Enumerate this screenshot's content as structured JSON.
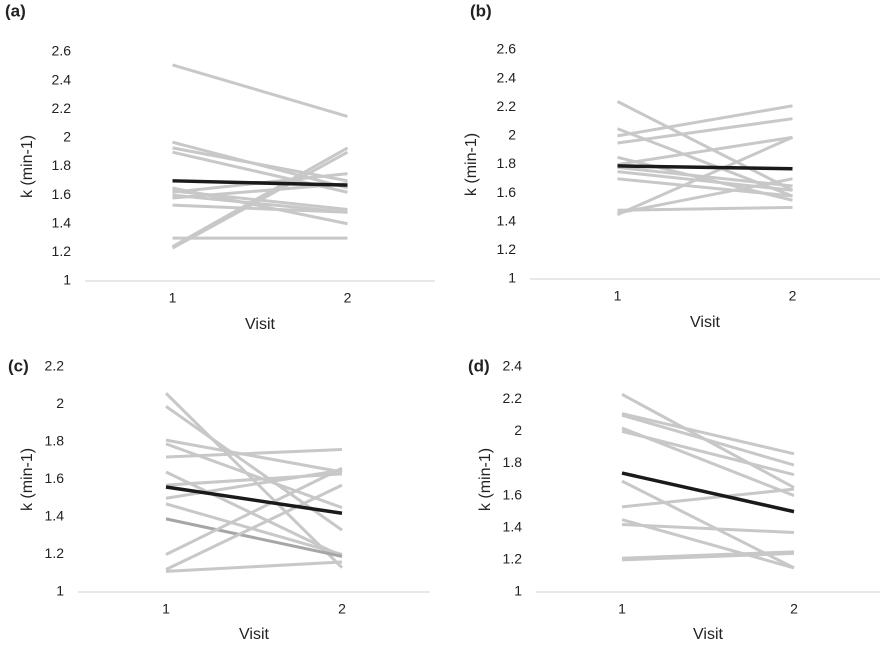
{
  "chart_data": [
    {
      "type": "line",
      "label": "(a)",
      "xlabel": "Visit",
      "ylabel": "k (min-1)",
      "categories": [
        "1",
        "2"
      ],
      "ylim": [
        1,
        2.6
      ],
      "yticks": [
        1,
        1.2,
        1.4,
        1.6,
        1.8,
        2,
        2.2,
        2.4,
        2.6
      ],
      "series": [
        {
          "color": "#c8c8c8",
          "values": [
            2.51,
            2.15
          ]
        },
        {
          "color": "#c8c8c8",
          "values": [
            1.97,
            1.65
          ]
        },
        {
          "color": "#c8c8c8",
          "values": [
            1.93,
            1.7
          ]
        },
        {
          "color": "#c8c8c8",
          "values": [
            1.9,
            1.62
          ]
        },
        {
          "color": "#c8c8c8",
          "values": [
            1.62,
            1.75
          ]
        },
        {
          "color": "#c8c8c8",
          "values": [
            1.58,
            1.68
          ]
        },
        {
          "color": "#c8c8c8",
          "values": [
            1.63,
            1.5
          ]
        },
        {
          "color": "#c8c8c8",
          "values": [
            1.53,
            1.48
          ]
        },
        {
          "color": "#c8c8c8",
          "values": [
            1.3,
            1.3
          ]
        },
        {
          "color": "#c8c8c8",
          "values": [
            1.24,
            1.93
          ]
        },
        {
          "color": "#c8c8c8",
          "values": [
            1.23,
            1.9
          ]
        },
        {
          "color": "#c8c8c8",
          "values": [
            1.65,
            1.4
          ]
        },
        {
          "color": "#c8c8c8",
          "values": [
            1.6,
            1.48
          ]
        },
        {
          "color": "#1a1a1a",
          "values": [
            1.7,
            1.67
          ]
        }
      ]
    },
    {
      "type": "line",
      "label": "(b)",
      "xlabel": "Visit",
      "ylabel": "k (min-1)",
      "categories": [
        "1",
        "2"
      ],
      "ylim": [
        1,
        2.6
      ],
      "yticks": [
        1,
        1.2,
        1.4,
        1.6,
        1.8,
        2,
        2.2,
        2.4,
        2.6
      ],
      "series": [
        {
          "color": "#c8c8c8",
          "values": [
            2.24,
            1.62
          ]
        },
        {
          "color": "#c8c8c8",
          "values": [
            2.05,
            1.58
          ]
        },
        {
          "color": "#c8c8c8",
          "values": [
            2.0,
            2.21
          ]
        },
        {
          "color": "#c8c8c8",
          "values": [
            1.95,
            2.12
          ]
        },
        {
          "color": "#c8c8c8",
          "values": [
            1.8,
            1.99
          ]
        },
        {
          "color": "#c8c8c8",
          "values": [
            1.75,
            1.62
          ]
        },
        {
          "color": "#c8c8c8",
          "values": [
            1.7,
            1.58
          ]
        },
        {
          "color": "#c8c8c8",
          "values": [
            1.48,
            1.5
          ]
        },
        {
          "color": "#c8c8c8",
          "values": [
            1.45,
            1.99
          ]
        },
        {
          "color": "#c8c8c8",
          "values": [
            1.46,
            1.7
          ]
        },
        {
          "color": "#c8c8c8",
          "values": [
            1.85,
            1.55
          ]
        },
        {
          "color": "#c8c8c8",
          "values": [
            1.78,
            1.65
          ]
        },
        {
          "color": "#1a1a1a",
          "values": [
            1.79,
            1.77
          ]
        }
      ]
    },
    {
      "type": "line",
      "label": "(c)",
      "xlabel": "Visit",
      "xlabel_color": "#a6a6a6",
      "ylabel": "k (min-1)",
      "categories": [
        "1",
        "2"
      ],
      "ylim": [
        1,
        2.2
      ],
      "yticks": [
        1,
        1.2,
        1.4,
        1.6,
        1.8,
        2,
        2.2
      ],
      "series": [
        {
          "color": "#c8c8c8",
          "values": [
            2.06,
            1.13
          ]
        },
        {
          "color": "#c8c8c8",
          "values": [
            1.99,
            1.33
          ]
        },
        {
          "color": "#c8c8c8",
          "values": [
            1.81,
            1.64
          ]
        },
        {
          "color": "#c8c8c8",
          "values": [
            1.79,
            1.45
          ]
        },
        {
          "color": "#c8c8c8",
          "values": [
            1.72,
            1.76
          ]
        },
        {
          "color": "#c8c8c8",
          "values": [
            1.64,
            1.19
          ]
        },
        {
          "color": "#c8c8c8",
          "values": [
            1.57,
            1.63
          ]
        },
        {
          "color": "#c8c8c8",
          "values": [
            1.5,
            1.65
          ]
        },
        {
          "color": "#c8c8c8",
          "values": [
            1.47,
            1.2
          ]
        },
        {
          "color": "#a6a6a6",
          "values": [
            1.39,
            1.19
          ]
        },
        {
          "color": "#c8c8c8",
          "values": [
            1.2,
            1.66
          ]
        },
        {
          "color": "#c8c8c8",
          "values": [
            1.12,
            1.57
          ]
        },
        {
          "color": "#c8c8c8",
          "values": [
            1.11,
            1.16
          ]
        },
        {
          "color": "#1a1a1a",
          "values": [
            1.56,
            1.42
          ]
        }
      ]
    },
    {
      "type": "line",
      "label": "(d)",
      "xlabel": "Visit",
      "ylabel": "k (min-1)",
      "categories": [
        "1",
        "2"
      ],
      "ylim": [
        1,
        2.4
      ],
      "yticks": [
        1,
        1.2,
        1.4,
        1.6,
        1.8,
        2,
        2.2,
        2.4
      ],
      "series": [
        {
          "color": "#c8c8c8",
          "values": [
            2.23,
            1.65
          ]
        },
        {
          "color": "#c8c8c8",
          "values": [
            2.11,
            1.86
          ]
        },
        {
          "color": "#c8c8c8",
          "values": [
            2.1,
            1.79
          ]
        },
        {
          "color": "#c8c8c8",
          "values": [
            2.02,
            1.6
          ]
        },
        {
          "color": "#c8c8c8",
          "values": [
            2.0,
            1.73
          ]
        },
        {
          "color": "#c8c8c8",
          "values": [
            1.69,
            1.15
          ]
        },
        {
          "color": "#c8c8c8",
          "values": [
            1.53,
            1.64
          ]
        },
        {
          "color": "#c8c8c8",
          "values": [
            1.45,
            1.15
          ]
        },
        {
          "color": "#c8c8c8",
          "values": [
            1.42,
            1.37
          ]
        },
        {
          "color": "#c8c8c8",
          "values": [
            1.21,
            1.25
          ]
        },
        {
          "color": "#c8c8c8",
          "values": [
            1.2,
            1.24
          ]
        },
        {
          "color": "#1a1a1a",
          "values": [
            1.74,
            1.5
          ]
        }
      ]
    }
  ]
}
